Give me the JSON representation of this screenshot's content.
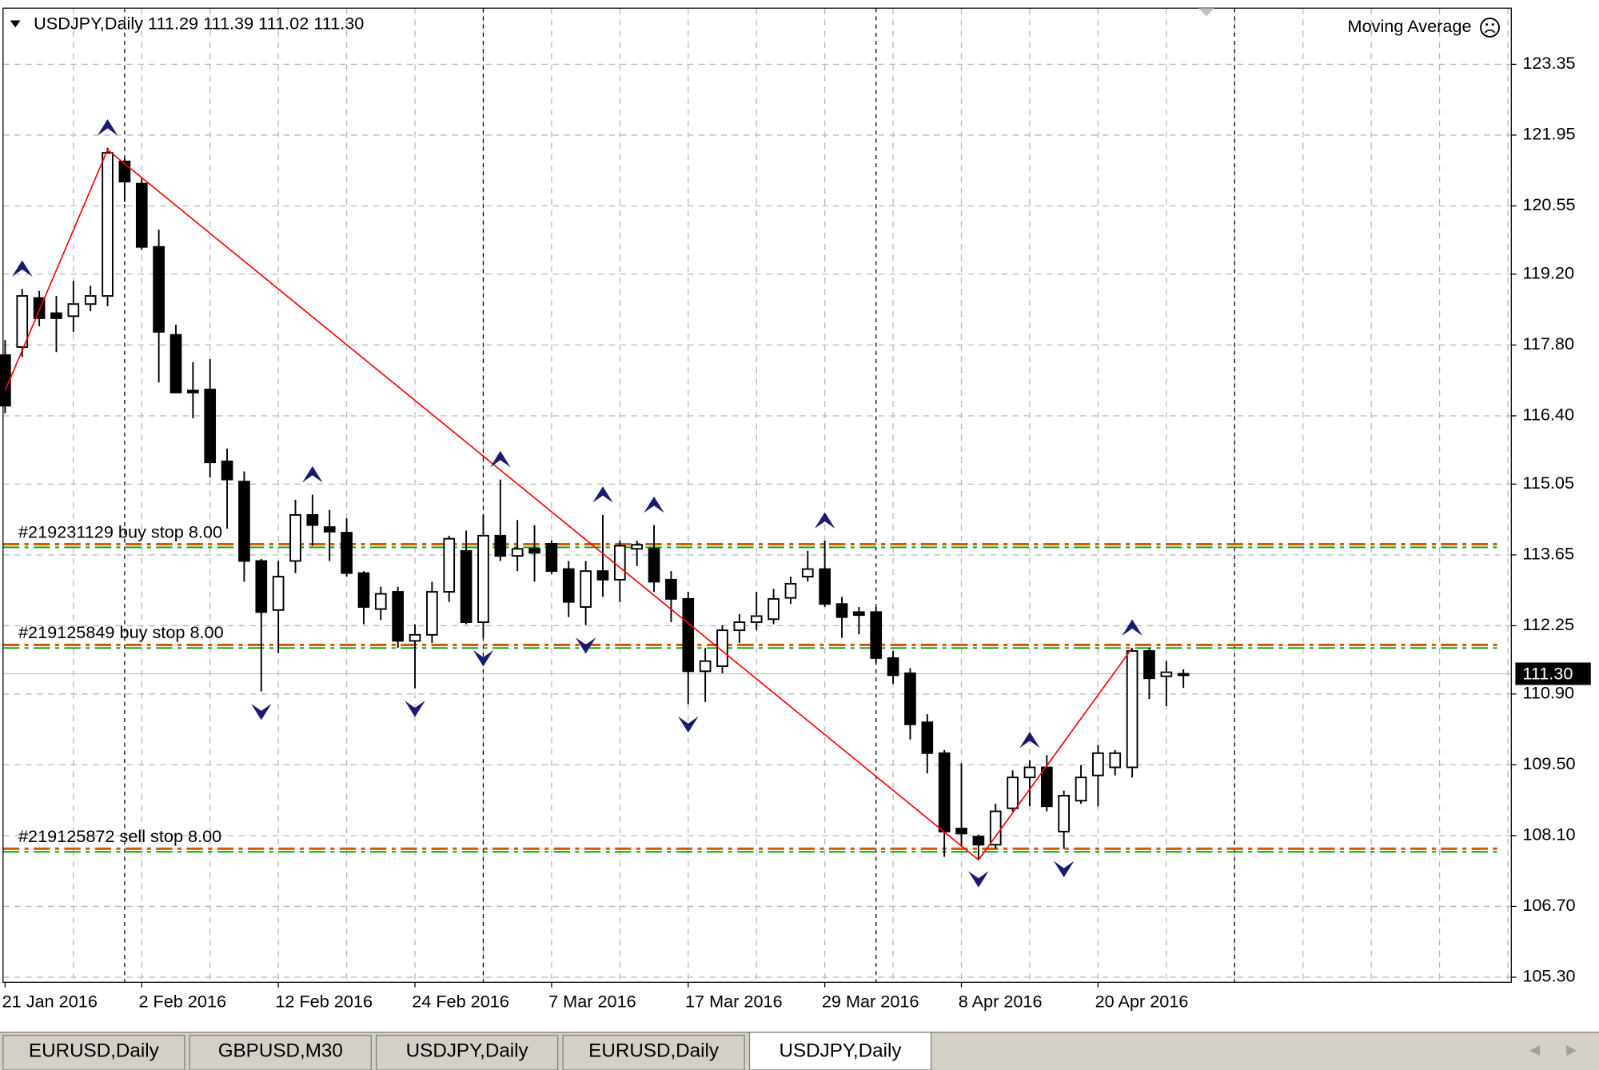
{
  "chart_data": {
    "type": "candlestick",
    "header": "USDJPY,Daily  111.29 111.39 111.02 111.30",
    "indicator": "Moving Average",
    "categories": [
      "21 Jan 2016",
      null,
      null,
      null,
      null,
      null,
      null,
      null,
      "2 Feb 2016",
      null,
      null,
      null,
      null,
      null,
      null,
      null,
      "12 Feb 2016",
      null,
      null,
      null,
      null,
      null,
      null,
      null,
      "24 Feb 2016",
      null,
      null,
      null,
      null,
      null,
      null,
      null,
      "7 Mar 2016",
      null,
      null,
      null,
      null,
      null,
      null,
      null,
      "17 Mar 2016",
      null,
      null,
      null,
      null,
      null,
      null,
      null,
      "29 Mar 2016",
      null,
      null,
      null,
      null,
      null,
      null,
      null,
      "8 Apr 2016",
      null,
      null,
      null,
      null,
      null,
      null,
      null,
      "20 Apr 2016",
      null,
      null,
      null,
      null,
      null
    ],
    "open": [
      117.6,
      117.76,
      118.73,
      118.43,
      118.37,
      118.61,
      118.77,
      121.43,
      120.99,
      119.74,
      118.0,
      116.9,
      116.92,
      115.5,
      115.1,
      113.53,
      112.56,
      113.53,
      114.44,
      114.2,
      114.09,
      113.29,
      112.58,
      112.92,
      111.95,
      112.07,
      112.92,
      113.73,
      112.32,
      114.03,
      113.63,
      113.77,
      113.87,
      113.37,
      112.62,
      113.33,
      113.16,
      113.77,
      113.77,
      113.16,
      112.78,
      111.35,
      111.45,
      112.16,
      112.32,
      112.38,
      112.8,
      113.22,
      113.37,
      112.68,
      112.52,
      112.52,
      111.61,
      111.31,
      110.34,
      109.73,
      108.24,
      108.08,
      107.92,
      108.64,
      109.25,
      109.45,
      108.18,
      108.79,
      109.29,
      109.45,
      109.45,
      111.75,
      111.25,
      111.29
    ],
    "high": [
      117.9,
      118.91,
      118.87,
      118.77,
      119.07,
      118.97,
      121.7,
      121.49,
      121.09,
      120.08,
      118.2,
      117.46,
      117.52,
      115.75,
      115.3,
      113.57,
      113.53,
      114.74,
      114.84,
      114.54,
      114.37,
      113.33,
      113.02,
      113.02,
      112.28,
      113.12,
      114.03,
      114.13,
      114.44,
      115.14,
      114.34,
      114.24,
      113.93,
      113.53,
      113.53,
      114.44,
      113.93,
      113.93,
      114.24,
      113.33,
      112.92,
      111.81,
      112.26,
      112.48,
      112.92,
      112.98,
      113.22,
      113.73,
      113.93,
      112.82,
      112.62,
      112.62,
      111.75,
      111.41,
      110.5,
      109.79,
      109.53,
      108.12,
      108.73,
      109.39,
      109.59,
      109.69,
      108.99,
      109.49,
      109.89,
      109.79,
      111.81,
      111.81,
      111.55,
      111.39
    ],
    "low": [
      116.45,
      117.56,
      118.17,
      117.66,
      118.06,
      118.47,
      118.57,
      120.63,
      119.68,
      117.06,
      116.86,
      116.35,
      115.18,
      114.17,
      113.12,
      110.95,
      111.71,
      113.29,
      113.83,
      113.53,
      113.22,
      112.28,
      112.36,
      111.81,
      111.01,
      111.91,
      112.72,
      112.28,
      112.01,
      113.53,
      113.33,
      113.12,
      113.27,
      112.42,
      112.26,
      112.82,
      112.72,
      113.43,
      112.92,
      112.32,
      110.7,
      110.74,
      111.31,
      111.91,
      112.16,
      112.28,
      112.68,
      113.12,
      112.62,
      112.01,
      112.08,
      111.51,
      111.1,
      110.0,
      109.33,
      107.68,
      107.88,
      107.64,
      107.84,
      108.58,
      108.68,
      108.58,
      107.84,
      108.73,
      108.68,
      109.29,
      109.25,
      110.8,
      110.66,
      111.02
    ],
    "close": [
      116.6,
      118.77,
      118.33,
      118.33,
      118.61,
      118.77,
      121.6,
      121.03,
      119.74,
      118.06,
      116.86,
      116.86,
      115.48,
      115.14,
      113.53,
      112.52,
      113.22,
      114.44,
      114.24,
      114.11,
      113.29,
      112.62,
      112.88,
      111.95,
      112.07,
      112.92,
      113.97,
      112.32,
      114.03,
      113.63,
      113.77,
      113.69,
      113.33,
      112.72,
      113.33,
      113.16,
      113.83,
      113.85,
      113.12,
      112.78,
      111.35,
      111.55,
      112.16,
      112.32,
      112.44,
      112.78,
      113.08,
      113.37,
      112.68,
      112.42,
      112.46,
      111.61,
      111.27,
      110.3,
      109.73,
      108.18,
      108.14,
      107.92,
      108.58,
      109.25,
      109.45,
      108.68,
      108.89,
      109.25,
      109.73,
      109.73,
      111.75,
      111.21,
      111.33,
      111.3
    ],
    "up_color": "#ffffff",
    "down_color": "#000000",
    "zigzag": {
      "x": [
        0,
        6,
        57,
        66
      ],
      "values": [
        116.9,
        121.66,
        107.62,
        111.81
      ],
      "color": "#ff0000"
    },
    "fractals_up": [
      1,
      6,
      18,
      29,
      35,
      38,
      48,
      60,
      66
    ],
    "fractals_down": [
      15,
      24,
      28,
      34,
      40,
      57,
      62
    ],
    "fractal_color": "#1a1a70",
    "orders": [
      {
        "label": "#219231129 buy stop 8.00",
        "price": 113.84
      },
      {
        "label": "#219125849 buy stop 8.00",
        "price": 111.85
      },
      {
        "label": "#219125872 sell stop 8.00",
        "price": 107.82
      }
    ],
    "order_colors": [
      "#d06000",
      "#00a000"
    ],
    "current_price": {
      "value": 111.3,
      "label": "111.30"
    },
    "period_separators": [
      7,
      28,
      51,
      72
    ],
    "xlim": [
      -0.12,
      88.2
    ],
    "xgrid_step": 4,
    "ylim": [
      105.2,
      124.46
    ],
    "yticks": [
      123.35,
      121.95,
      120.55,
      {
        "value": 119.2,
        "label": "119.20"
      },
      {
        "value": 117.8,
        "label": "117.80"
      },
      {
        "value": 116.4,
        "label": "116.40"
      },
      115.05,
      113.65,
      112.25,
      {
        "value": 110.9,
        "label": "110.90"
      },
      {
        "value": 109.5,
        "label": "109.50"
      },
      {
        "value": 108.1,
        "label": "108.10"
      },
      {
        "value": 106.7,
        "label": "106.70"
      },
      {
        "value": 105.3,
        "label": "105.30"
      }
    ],
    "grid": true
  },
  "tabs": [
    "EURUSD,Daily",
    "GBPUSD,M30",
    "USDJPY,Daily",
    "EURUSD,Daily",
    "USDJPY,Daily"
  ],
  "active_tab": 4
}
